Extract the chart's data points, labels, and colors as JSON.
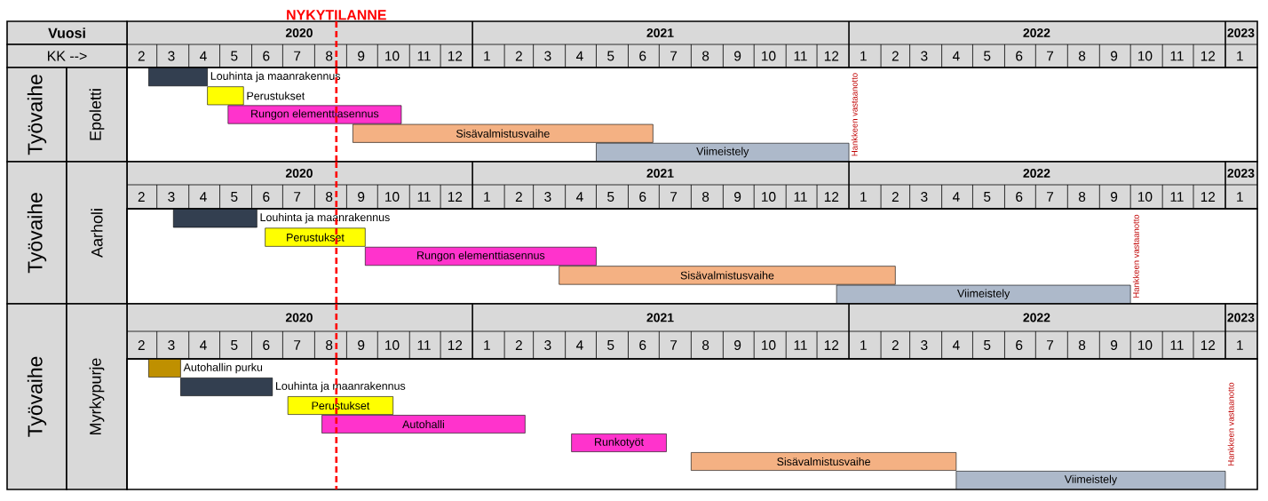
{
  "chart_data": [
    {
      "type": "bar",
      "orientation": "horizontal",
      "title": "Epoletti",
      "ylabel": "Työvaihe",
      "xlabel": "KK -->",
      "x2label": "Vuosi",
      "categories": [
        "Louhinta ja maanrakennus",
        "Perustukset",
        "Rungon elementtiasennus",
        "Sisävalmistusvaihe",
        "Viimeistely"
      ],
      "base": [
        18314,
        18371,
        18391,
        18512,
        18748
      ],
      "values": [
        57,
        35,
        168,
        291,
        245
      ],
      "colors": [
        "#333f50",
        "#ffff00",
        "#ff33cc",
        "#f4b183",
        "#adb9ca"
      ],
      "xlim": [
        "2020-02-01",
        "2023-02-01"
      ],
      "xticks": [
        {
          "value": "2020-02-15",
          "label": "2"
        },
        {
          "value": "2020-03-15",
          "label": "3"
        },
        {
          "value": "2020-04-15",
          "label": "4"
        },
        {
          "value": "2020-05-15",
          "label": "5"
        },
        {
          "value": "2020-06-15",
          "label": "6"
        },
        {
          "value": "2020-07-15",
          "label": "7"
        },
        {
          "value": "2020-08-15",
          "label": "8"
        },
        {
          "value": "2020-09-15",
          "label": "9"
        },
        {
          "value": "2020-10-15",
          "label": "10"
        },
        {
          "value": "2020-11-15",
          "label": "11"
        },
        {
          "value": "2020-12-15",
          "label": "12"
        },
        {
          "value": "2021-01-15",
          "label": "1"
        },
        {
          "value": "2021-02-15",
          "label": "2"
        },
        {
          "value": "2021-03-15",
          "label": "3"
        },
        {
          "value": "2021-04-15",
          "label": "4"
        },
        {
          "value": "2021-05-15",
          "label": "5"
        },
        {
          "value": "2021-06-15",
          "label": "6"
        },
        {
          "value": "2021-07-15",
          "label": "7"
        },
        {
          "value": "2021-08-15",
          "label": "8"
        },
        {
          "value": "2021-09-15",
          "label": "9"
        },
        {
          "value": "2021-10-15",
          "label": "10"
        },
        {
          "value": "2021-11-15",
          "label": "11"
        },
        {
          "value": "2021-12-15",
          "label": "12"
        },
        {
          "value": "2022-01-15",
          "label": "1"
        },
        {
          "value": "2022-02-15",
          "label": "2"
        },
        {
          "value": "2022-03-15",
          "label": "3"
        },
        {
          "value": "2022-04-15",
          "label": "4"
        },
        {
          "value": "2022-05-15",
          "label": "5"
        },
        {
          "value": "2022-06-15",
          "label": "6"
        },
        {
          "value": "2022-07-15",
          "label": "7"
        },
        {
          "value": "2022-08-15",
          "label": "8"
        },
        {
          "value": "2022-09-15",
          "label": "9"
        },
        {
          "value": "2022-10-15",
          "label": "10"
        },
        {
          "value": "2022-11-15",
          "label": "11"
        },
        {
          "value": "2022-12-15",
          "label": "12"
        },
        {
          "value": "2023-01-15",
          "label": "1"
        }
      ],
      "x2lim": [
        "2020-02-01",
        "2023-02-01"
      ],
      "x2ticks": [
        {
          "value": "2020-07-17",
          "label": "2020"
        },
        {
          "value": "2021-07-02",
          "label": "2021"
        },
        {
          "value": "2022-07-02",
          "label": "2022"
        },
        {
          "value": "2023-01-16",
          "label": "2023"
        }
      ],
      "ref_lines": [
        {
          "axis": "x",
          "value": "2020-08-22",
          "label": "NYKYTILANNE",
          "color": "#ff0000",
          "line_style": "dashed"
        }
      ],
      "annotations": [
        "Hankkeen vastaanotto"
      ]
    },
    {
      "type": "bar",
      "orientation": "horizontal",
      "title": "Aarholi",
      "ylabel": "Työvaihe",
      "categories": [
        "Louhinta ja maanrakennus",
        "Perustukset",
        "Rungon elementtiasennus",
        "Sisävalmistusvaihe",
        "Viimeistely"
      ],
      "base": [
        18338,
        18427,
        18524,
        18712,
        18981
      ],
      "values": [
        81,
        97,
        224,
        326,
        285
      ],
      "colors": [
        "#333f50",
        "#ffff00",
        "#ff33cc",
        "#f4b183",
        "#adb9ca"
      ],
      "xlim": [
        "2020-02-01",
        "2023-02-01"
      ],
      "xticks": [
        {
          "value": "2020-02-15",
          "label": "2"
        },
        {
          "value": "2020-03-15",
          "label": "3"
        },
        {
          "value": "2020-04-15",
          "label": "4"
        },
        {
          "value": "2020-05-15",
          "label": "5"
        },
        {
          "value": "2020-06-15",
          "label": "6"
        },
        {
          "value": "2020-07-15",
          "label": "7"
        },
        {
          "value": "2020-08-15",
          "label": "8"
        },
        {
          "value": "2020-09-15",
          "label": "9"
        },
        {
          "value": "2020-10-15",
          "label": "10"
        },
        {
          "value": "2020-11-15",
          "label": "11"
        },
        {
          "value": "2020-12-15",
          "label": "12"
        },
        {
          "value": "2021-01-15",
          "label": "1"
        },
        {
          "value": "2021-02-15",
          "label": "2"
        },
        {
          "value": "2021-03-15",
          "label": "3"
        },
        {
          "value": "2021-04-15",
          "label": "4"
        },
        {
          "value": "2021-05-15",
          "label": "5"
        },
        {
          "value": "2021-06-15",
          "label": "6"
        },
        {
          "value": "2021-07-15",
          "label": "7"
        },
        {
          "value": "2021-08-15",
          "label": "8"
        },
        {
          "value": "2021-09-15",
          "label": "9"
        },
        {
          "value": "2021-10-15",
          "label": "10"
        },
        {
          "value": "2021-11-15",
          "label": "11"
        },
        {
          "value": "2021-12-15",
          "label": "12"
        },
        {
          "value": "2022-01-15",
          "label": "1"
        },
        {
          "value": "2022-02-15",
          "label": "2"
        },
        {
          "value": "2022-03-15",
          "label": "3"
        },
        {
          "value": "2022-04-15",
          "label": "4"
        },
        {
          "value": "2022-05-15",
          "label": "5"
        },
        {
          "value": "2022-06-15",
          "label": "6"
        },
        {
          "value": "2022-07-15",
          "label": "7"
        },
        {
          "value": "2022-08-15",
          "label": "8"
        },
        {
          "value": "2022-09-15",
          "label": "9"
        },
        {
          "value": "2022-10-15",
          "label": "10"
        },
        {
          "value": "2022-11-15",
          "label": "11"
        },
        {
          "value": "2022-12-15",
          "label": "12"
        },
        {
          "value": "2023-01-15",
          "label": "1"
        }
      ],
      "x2lim": [
        "2020-02-01",
        "2023-02-01"
      ],
      "x2ticks": [
        {
          "value": "2020-07-17",
          "label": "2020"
        },
        {
          "value": "2021-07-02",
          "label": "2021"
        },
        {
          "value": "2022-07-02",
          "label": "2022"
        },
        {
          "value": "2023-01-16",
          "label": "2023"
        }
      ],
      "ref_lines": [
        {
          "axis": "x",
          "value": "2020-08-22",
          "color": "#ff0000",
          "line_style": "dashed"
        }
      ],
      "annotations": [
        "Hankkeen vastaanotto"
      ]
    },
    {
      "type": "bar",
      "orientation": "horizontal",
      "title": "Myrkypurje",
      "ylabel": "Työvaihe",
      "categories": [
        "Autohallin purku",
        "Louhinta ja maanrakennus",
        "Perustukset",
        "Autohalli",
        "Runkotyöt",
        "Sisävalmistusvaihe",
        "Viimeistely"
      ],
      "base": [
        18314,
        18345,
        18449,
        18482,
        18724,
        18840,
        19097
      ],
      "values": [
        31,
        89,
        102,
        197,
        92,
        257,
        261
      ],
      "colors": [
        "#bf9000",
        "#333f50",
        "#ffff00",
        "#ff33cc",
        "#ff33cc",
        "#f4b183",
        "#adb9ca"
      ],
      "xlim": [
        "2020-02-01",
        "2023-02-01"
      ],
      "xticks": [
        {
          "value": "2020-02-15",
          "label": "2"
        },
        {
          "value": "2020-03-15",
          "label": "3"
        },
        {
          "value": "2020-04-15",
          "label": "4"
        },
        {
          "value": "2020-05-15",
          "label": "5"
        },
        {
          "value": "2020-06-15",
          "label": "6"
        },
        {
          "value": "2020-07-15",
          "label": "7"
        },
        {
          "value": "2020-08-15",
          "label": "8"
        },
        {
          "value": "2020-09-15",
          "label": "9"
        },
        {
          "value": "2020-10-15",
          "label": "10"
        },
        {
          "value": "2020-11-15",
          "label": "11"
        },
        {
          "value": "2020-12-15",
          "label": "12"
        },
        {
          "value": "2021-01-15",
          "label": "1"
        },
        {
          "value": "2021-02-15",
          "label": "2"
        },
        {
          "value": "2021-03-15",
          "label": "3"
        },
        {
          "value": "2021-04-15",
          "label": "4"
        },
        {
          "value": "2021-05-15",
          "label": "5"
        },
        {
          "value": "2021-06-15",
          "label": "6"
        },
        {
          "value": "2021-07-15",
          "label": "7"
        },
        {
          "value": "2021-08-15",
          "label": "8"
        },
        {
          "value": "2021-09-15",
          "label": "9"
        },
        {
          "value": "2021-10-15",
          "label": "10"
        },
        {
          "value": "2021-11-15",
          "label": "11"
        },
        {
          "value": "2021-12-15",
          "label": "12"
        },
        {
          "value": "2022-01-15",
          "label": "1"
        },
        {
          "value": "2022-02-15",
          "label": "2"
        },
        {
          "value": "2022-03-15",
          "label": "3"
        },
        {
          "value": "2022-04-15",
          "label": "4"
        },
        {
          "value": "2022-05-15",
          "label": "5"
        },
        {
          "value": "2022-06-15",
          "label": "6"
        },
        {
          "value": "2022-07-15",
          "label": "7"
        },
        {
          "value": "2022-08-15",
          "label": "8"
        },
        {
          "value": "2022-09-15",
          "label": "9"
        },
        {
          "value": "2022-10-15",
          "label": "10"
        },
        {
          "value": "2022-11-15",
          "label": "11"
        },
        {
          "value": "2022-12-15",
          "label": "12"
        },
        {
          "value": "2023-01-15",
          "label": "1"
        }
      ],
      "x2lim": [
        "2020-02-01",
        "2023-02-01"
      ],
      "x2ticks": [
        {
          "value": "2020-07-17",
          "label": "2020"
        },
        {
          "value": "2021-07-02",
          "label": "2021"
        },
        {
          "value": "2022-07-02",
          "label": "2022"
        },
        {
          "value": "2023-01-16",
          "label": "2023"
        }
      ],
      "ref_lines": [
        {
          "axis": "x",
          "value": "2020-08-22",
          "color": "#ff0000",
          "line_style": "dashed"
        }
      ],
      "annotations": [
        "Hankkeen vastaanotto"
      ]
    }
  ]
}
